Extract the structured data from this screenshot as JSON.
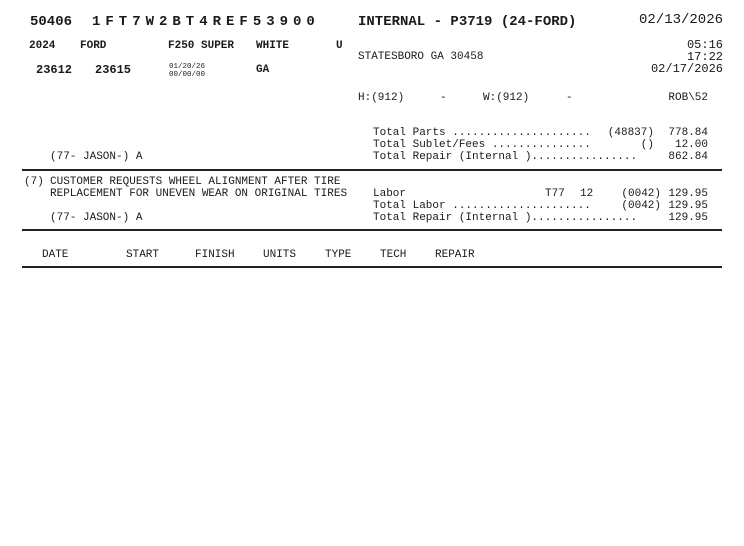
{
  "header": {
    "ro_number": "50406",
    "vin": "1FT7W2BT4REF53900",
    "title": "INTERNAL - P3719 (24-FORD)",
    "open_date": "02/13/2026"
  },
  "vehicle": {
    "year": "2024",
    "make": "FORD",
    "model": "F250 SUPER",
    "color": "WHITE",
    "flag": "U",
    "mileage_in": "23612",
    "mileage_out": "23615",
    "date1": "01/20/26",
    "date2": "00/00/00",
    "state": "GA"
  },
  "customer": {
    "city_line": "STATESBORO GA 30458",
    "home_phone_label": "H:(912)",
    "home_phone_dash": "-",
    "work_phone_label": "W:(912)",
    "work_phone_dash": "-",
    "advisor": "ROB\\52"
  },
  "times": {
    "time1": "05:16",
    "time2": "17:22",
    "promised_date": "02/17/2026"
  },
  "summary": {
    "tech_line": "(77- JASON-) A",
    "rows": [
      {
        "label": "Total Parts .....................",
        "code": "(48837)",
        "amount": "778.84"
      },
      {
        "label": "Total Sublet/Fees ...............",
        "code": "()",
        "amount": "12.00"
      },
      {
        "label": "Total Repair (Internal )................",
        "code": "",
        "amount": "862.84"
      }
    ]
  },
  "job": {
    "number": "(7)",
    "line1": "CUSTOMER REQUESTS WHEEL ALIGNMENT AFTER TIRE",
    "line2": "REPLACEMENT FOR UNEVEN WEAR ON ORIGINAL TIRES",
    "tech_line": "(77- JASON-) A",
    "labor": {
      "label": "Labor",
      "tech": "T77",
      "hours": "12",
      "code": "(0042)",
      "amount": "129.95"
    },
    "total_labor": {
      "label": "Total Labor .....................",
      "code": "(0042)",
      "amount": "129.95"
    },
    "total_repair": {
      "label": "Total Repair (Internal )................",
      "amount": "129.95"
    }
  },
  "time_table": {
    "columns": [
      "DATE",
      "START",
      "FINISH",
      "UNITS",
      "TYPE",
      "TECH",
      "REPAIR"
    ]
  }
}
